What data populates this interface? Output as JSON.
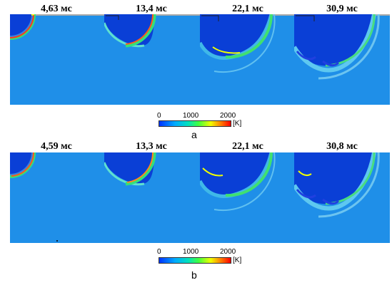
{
  "row_a": {
    "times": [
      "4,63 мс",
      "13,4 мс",
      "22,1 мс",
      "30,9 мс"
    ],
    "subfigure_label": "a"
  },
  "row_b": {
    "times": [
      "4,59 мс",
      "13,3 мс",
      "22,1 мс",
      "30,8 мс"
    ],
    "subfigure_label": "b"
  },
  "colorbar": {
    "ticks": [
      "0",
      "1000",
      "2000"
    ],
    "unit": "[K]",
    "colors": [
      "#0033ff",
      "#00aaff",
      "#00e0c0",
      "#40ff40",
      "#f0ff00",
      "#ff8000",
      "#ff0000"
    ]
  },
  "colors": {
    "background_field": "#1f8fe8",
    "cold_core": "#0a3fd6",
    "front_hot": "#ff3a1a",
    "front_warm": "#33e07a"
  }
}
